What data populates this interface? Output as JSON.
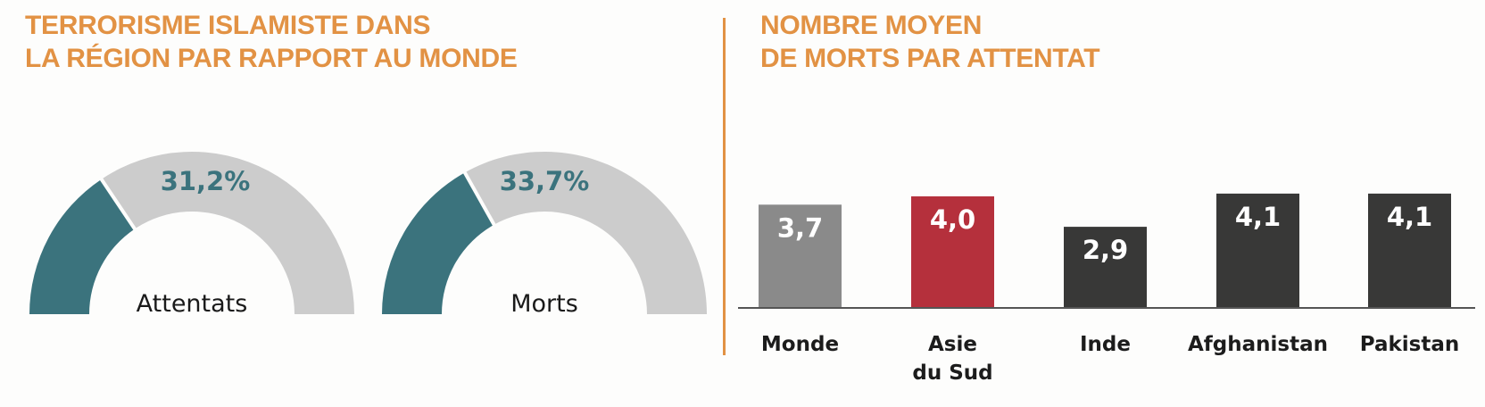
{
  "colors": {
    "accent": "#e29244",
    "teal": "#3b737d",
    "gauge_rest": "#cccccc",
    "bar_world": "#8a8a8a",
    "bar_region": "#b5303c",
    "bar_country": "#383837",
    "axis": "#555555"
  },
  "left_panel": {
    "title_lines": [
      "TERRORISME ISLAMISTE DANS",
      "LA RÉGION PAR RAPPORT AU MONDE"
    ]
  },
  "right_panel": {
    "title_lines": [
      "NOMBRE MOYEN",
      "DE MORTS PAR ATTENTAT"
    ]
  },
  "chart_data": [
    {
      "type": "pie",
      "subtype": "half-donut-gauge",
      "charts": [
        {
          "label": "Attentats",
          "value": 31.2,
          "value_label": "31,2%",
          "max": 100
        },
        {
          "label": "Morts",
          "value": 33.7,
          "value_label": "33,7%",
          "max": 100
        }
      ],
      "title": "TERRORISME ISLAMISTE DANS LA RÉGION PAR RAPPORT AU MONDE"
    },
    {
      "type": "bar",
      "title": "NOMBRE MOYEN DE MORTS PAR ATTENTAT",
      "categories": [
        {
          "lines": [
            "Monde"
          ]
        },
        {
          "lines": [
            "Asie",
            "du Sud"
          ]
        },
        {
          "lines": [
            "Inde"
          ]
        },
        {
          "lines": [
            "Afghanistan"
          ]
        },
        {
          "lines": [
            "Pakistan"
          ]
        }
      ],
      "values": [
        3.7,
        4.0,
        2.9,
        4.1,
        4.1
      ],
      "value_labels": [
        "3,7",
        "4,0",
        "2,9",
        "4,1",
        "4,1"
      ],
      "bar_color_keys": [
        "bar_world",
        "bar_region",
        "bar_country",
        "bar_country",
        "bar_country"
      ],
      "ylim": [
        0,
        4.5
      ],
      "xlabel": "",
      "ylabel": "",
      "grid": false
    }
  ]
}
